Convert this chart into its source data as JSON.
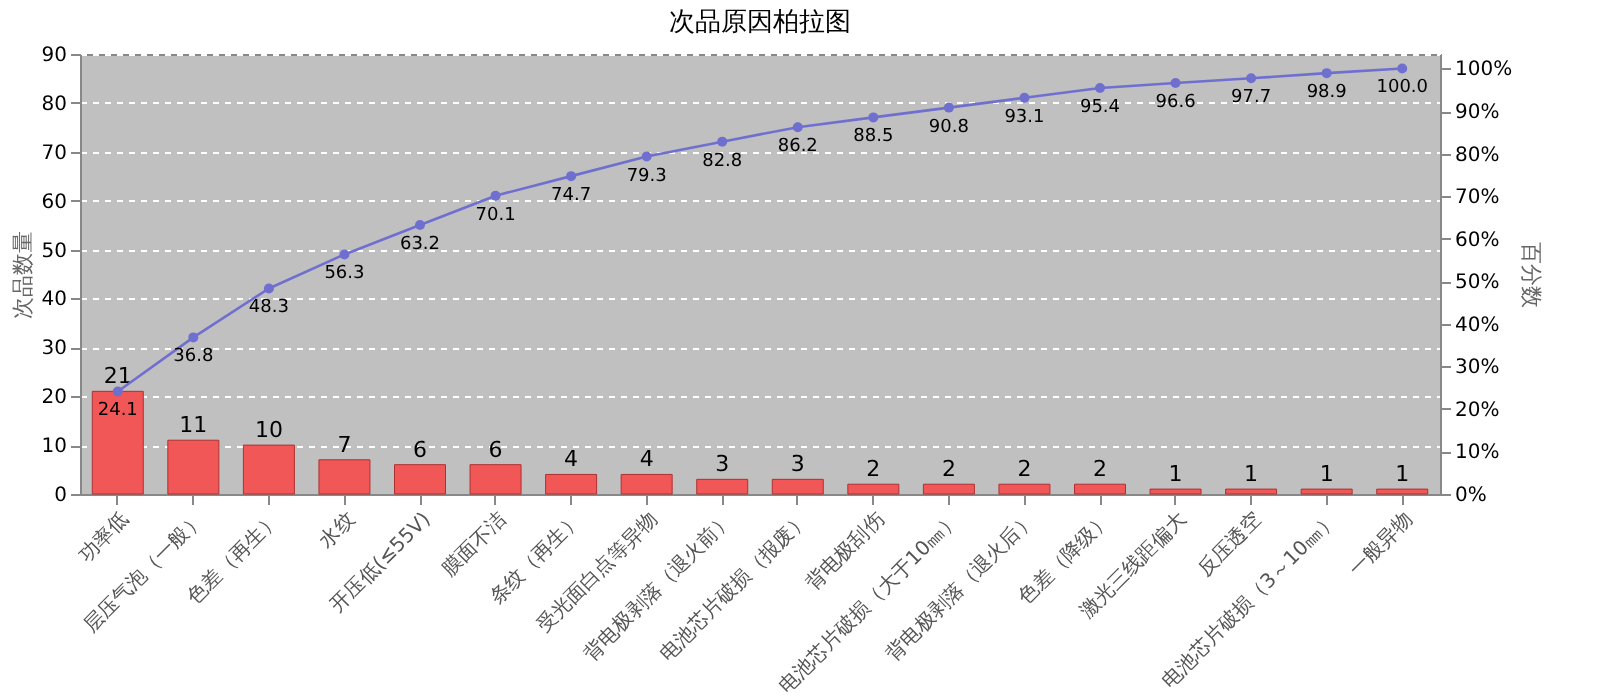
{
  "chart_data": {
    "type": "bar",
    "title": "次品原因柏拉图",
    "ylabel": "次品数量",
    "y2label": "百分数",
    "categories": [
      "功率低",
      "层压气泡（一般）",
      "色差（再生）",
      "水纹",
      "开压低(≤55V)",
      "膜面不洁",
      "条纹（再生）",
      "受光面白点等异物",
      "背电极剥落（退火前）",
      "电池芯片破损（报废）",
      "背电极刮伤",
      "电池芯片破损（大于10㎜）",
      "背电极剥落（退火后）",
      "色差（降级）",
      "激光三线距偏大",
      "反压透空",
      "电池芯片破损（3～10㎜）",
      "一般异物"
    ],
    "series": [
      {
        "color": "#f25757",
        "values": [
          21,
          11,
          10,
          7,
          6,
          6,
          4,
          4,
          3,
          3,
          2,
          2,
          2,
          2,
          1,
          1,
          1,
          1
        ]
      },
      {
        "type": "line",
        "axis": "y2",
        "color": "#6f6fd0",
        "values": [
          24.1,
          36.8,
          48.3,
          56.3,
          63.2,
          70.1,
          74.7,
          79.3,
          82.8,
          86.2,
          88.5,
          90.8,
          93.1,
          95.4,
          96.6,
          97.7,
          98.9,
          100.0
        ],
        "value_labels": [
          "24.1",
          "36.8",
          "48.3",
          "56.3",
          "63.2",
          "70.1",
          "74.7",
          "79.3",
          "82.8",
          "86.2",
          "88.5",
          "90.8",
          "93.1",
          "95.4",
          "96.6",
          "97.7",
          "98.9",
          "100.0"
        ]
      }
    ],
    "data_labels": true,
    "marker": "circle",
    "grid": "y",
    "ylim": [
      0,
      90
    ],
    "yticks": [
      0,
      10,
      20,
      30,
      40,
      50,
      60,
      70,
      80,
      90
    ],
    "y2lim": [
      0,
      103.4
    ],
    "y2ticks": [
      {
        "value": 0,
        "label": "0%"
      },
      {
        "value": 10,
        "label": "10%"
      },
      {
        "value": 20,
        "label": "20%"
      },
      {
        "value": 30,
        "label": "30%"
      },
      {
        "value": 40,
        "label": "40%"
      },
      {
        "value": 50,
        "label": "50%"
      },
      {
        "value": 60,
        "label": "60%"
      },
      {
        "value": 70,
        "label": "70%"
      },
      {
        "value": 80,
        "label": "80%"
      },
      {
        "value": 90,
        "label": "90%"
      },
      {
        "value": 100,
        "label": "100%"
      }
    ]
  }
}
